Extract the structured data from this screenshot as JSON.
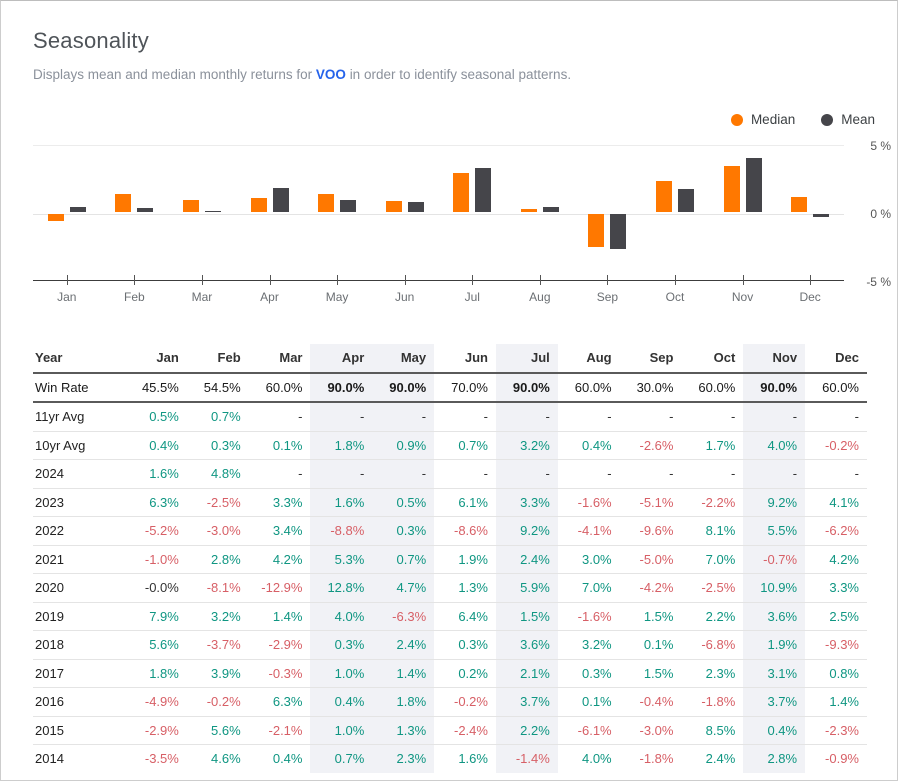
{
  "page": {
    "title": "Seasonality",
    "subtitle_prefix": "Displays mean and median monthly returns for",
    "ticker": "VOO",
    "subtitle_suffix": "in order to identify seasonal patterns."
  },
  "colors": {
    "median": "#ff7800",
    "mean": "#45454a",
    "positive": "#0f9682",
    "negative": "#d75f66",
    "neutral": "#333333",
    "ticker_blue": "#2563eb",
    "highlight_bg": "#f1f2f6"
  },
  "chart_data": {
    "type": "bar",
    "categories": [
      "Jan",
      "Feb",
      "Mar",
      "Apr",
      "May",
      "Jun",
      "Jul",
      "Aug",
      "Sep",
      "Oct",
      "Nov",
      "Dec"
    ],
    "series": [
      {
        "name": "Median",
        "color": "#ff7800",
        "values": [
          -0.5,
          1.3,
          0.9,
          1.0,
          1.35,
          0.8,
          2.85,
          0.2,
          -2.4,
          2.25,
          3.35,
          1.1
        ]
      },
      {
        "name": "Mean",
        "color": "#45454a",
        "values": [
          0.4,
          0.3,
          0.1,
          1.8,
          0.9,
          0.7,
          3.2,
          0.4,
          -2.6,
          1.7,
          4.0,
          -0.2
        ]
      }
    ],
    "title": "",
    "xlabel": "",
    "ylabel": "",
    "ylim": [
      -5,
      5
    ],
    "yticks": [
      "5 %",
      "0 %",
      "-5 %"
    ],
    "grid": true,
    "legend_position": "top-right"
  },
  "table": {
    "columns": [
      "Year",
      "Jan",
      "Feb",
      "Mar",
      "Apr",
      "May",
      "Jun",
      "Jul",
      "Aug",
      "Sep",
      "Oct",
      "Nov",
      "Dec"
    ],
    "highlighted_columns": [
      "Apr",
      "May",
      "Jul",
      "Nov"
    ],
    "rows": [
      {
        "label": "Win Rate",
        "type": "winrate",
        "values": [
          "45.5%",
          "54.5%",
          "60.0%",
          "90.0%",
          "90.0%",
          "70.0%",
          "90.0%",
          "60.0%",
          "30.0%",
          "60.0%",
          "90.0%",
          "60.0%"
        ]
      },
      {
        "label": "11yr Avg",
        "type": "avg",
        "values": [
          "0.5%",
          "0.7%",
          "-",
          "-",
          "-",
          "-",
          "-",
          "-",
          "-",
          "-",
          "-",
          "-"
        ]
      },
      {
        "label": "10yr Avg",
        "type": "avg",
        "values": [
          "0.4%",
          "0.3%",
          "0.1%",
          "1.8%",
          "0.9%",
          "0.7%",
          "3.2%",
          "0.4%",
          "-2.6%",
          "1.7%",
          "4.0%",
          "-0.2%"
        ]
      },
      {
        "label": "2024",
        "type": "year",
        "values": [
          "1.6%",
          "4.8%",
          "-",
          "-",
          "-",
          "-",
          "-",
          "-",
          "-",
          "-",
          "-",
          "-"
        ]
      },
      {
        "label": "2023",
        "type": "year",
        "values": [
          "6.3%",
          "-2.5%",
          "3.3%",
          "1.6%",
          "0.5%",
          "6.1%",
          "3.3%",
          "-1.6%",
          "-5.1%",
          "-2.2%",
          "9.2%",
          "4.1%"
        ]
      },
      {
        "label": "2022",
        "type": "year",
        "values": [
          "-5.2%",
          "-3.0%",
          "3.4%",
          "-8.8%",
          "0.3%",
          "-8.6%",
          "9.2%",
          "-4.1%",
          "-9.6%",
          "8.1%",
          "5.5%",
          "-6.2%"
        ]
      },
      {
        "label": "2021",
        "type": "year",
        "values": [
          "-1.0%",
          "2.8%",
          "4.2%",
          "5.3%",
          "0.7%",
          "1.9%",
          "2.4%",
          "3.0%",
          "-5.0%",
          "7.0%",
          "-0.7%",
          "4.2%"
        ]
      },
      {
        "label": "2020",
        "type": "year",
        "values": [
          "-0.0%",
          "-8.1%",
          "-12.9%",
          "12.8%",
          "4.7%",
          "1.3%",
          "5.9%",
          "7.0%",
          "-4.2%",
          "-2.5%",
          "10.9%",
          "3.3%"
        ]
      },
      {
        "label": "2019",
        "type": "year",
        "values": [
          "7.9%",
          "3.2%",
          "1.4%",
          "4.0%",
          "-6.3%",
          "6.4%",
          "1.5%",
          "-1.6%",
          "1.5%",
          "2.2%",
          "3.6%",
          "2.5%"
        ]
      },
      {
        "label": "2018",
        "type": "year",
        "values": [
          "5.6%",
          "-3.7%",
          "-2.9%",
          "0.3%",
          "2.4%",
          "0.3%",
          "3.6%",
          "3.2%",
          "0.1%",
          "-6.8%",
          "1.9%",
          "-9.3%"
        ]
      },
      {
        "label": "2017",
        "type": "year",
        "values": [
          "1.8%",
          "3.9%",
          "-0.3%",
          "1.0%",
          "1.4%",
          "0.2%",
          "2.1%",
          "0.3%",
          "1.5%",
          "2.3%",
          "3.1%",
          "0.8%"
        ]
      },
      {
        "label": "2016",
        "type": "year",
        "values": [
          "-4.9%",
          "-0.2%",
          "6.3%",
          "0.4%",
          "1.8%",
          "-0.2%",
          "3.7%",
          "0.1%",
          "-0.4%",
          "-1.8%",
          "3.7%",
          "1.4%"
        ]
      },
      {
        "label": "2015",
        "type": "year",
        "values": [
          "-2.9%",
          "5.6%",
          "-2.1%",
          "1.0%",
          "1.3%",
          "-2.4%",
          "2.2%",
          "-6.1%",
          "-3.0%",
          "8.5%",
          "0.4%",
          "-2.3%"
        ]
      },
      {
        "label": "2014",
        "type": "year",
        "values": [
          "-3.5%",
          "4.6%",
          "0.4%",
          "0.7%",
          "2.3%",
          "1.6%",
          "-1.4%",
          "4.0%",
          "-1.8%",
          "2.4%",
          "2.8%",
          "-0.9%"
        ]
      }
    ]
  }
}
